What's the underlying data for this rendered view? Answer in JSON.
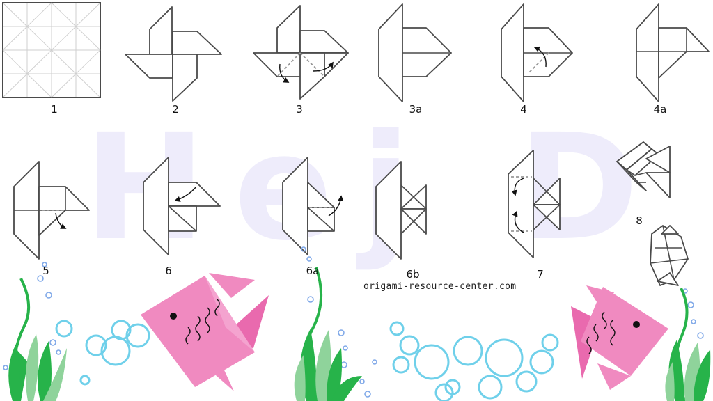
{
  "watermark": "Hej Dija!",
  "credit": "origami-resource-center.com",
  "steps": [
    "1",
    "2",
    "3",
    "3a",
    "4",
    "4a",
    "5",
    "6",
    "6a",
    "6b",
    "7",
    "8"
  ],
  "colors": {
    "fish_pink": "#f08ac0",
    "fish_pink_dark": "#e96aae",
    "seaweed_green": "#27b34a",
    "seaweed_light": "#8fd39b",
    "bubble_blue": "#6fd0ea",
    "watermark": "#eeecfb"
  }
}
